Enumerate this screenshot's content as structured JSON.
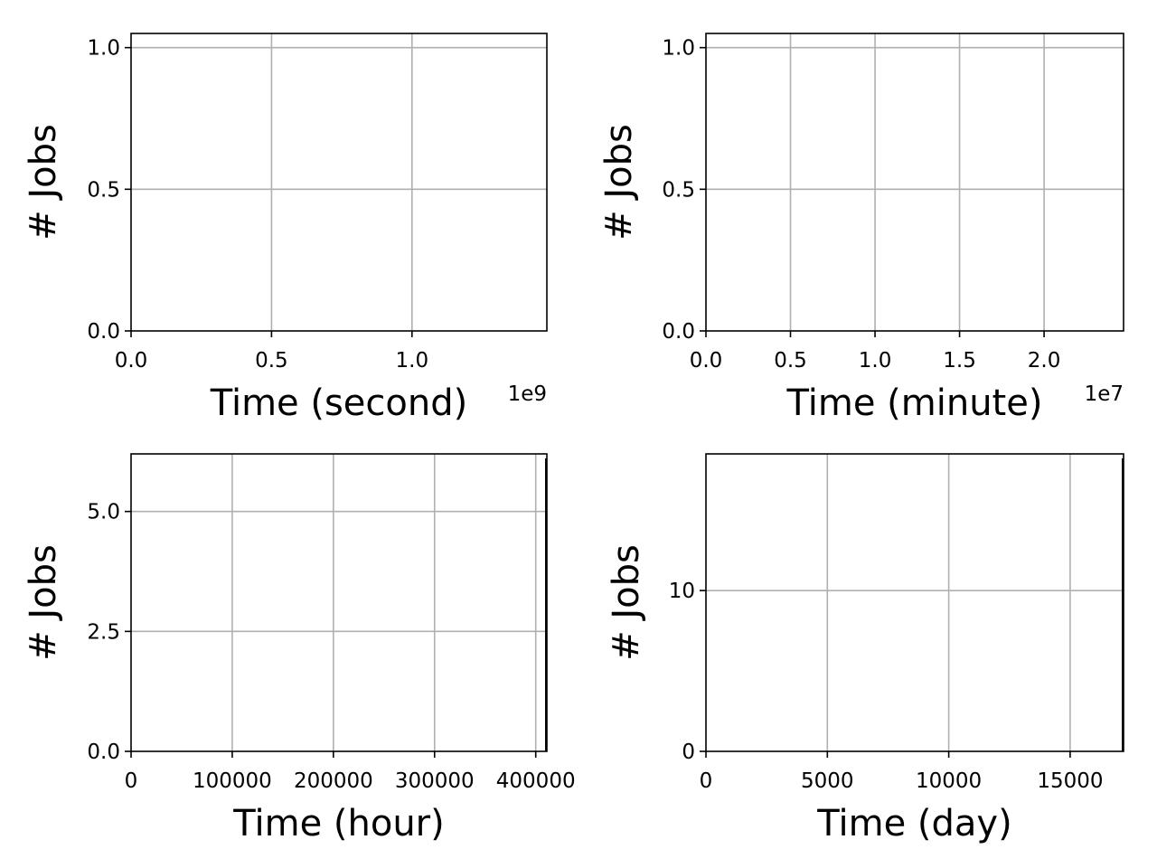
{
  "chart_data": [
    {
      "type": "bar",
      "title": "",
      "xlabel": "Time (second)",
      "ylabel": "# Jobs",
      "x_offset_text": "1e9",
      "xlim": [
        0,
        1.48
      ],
      "ylim": [
        0,
        1.05
      ],
      "x_ticks": [
        0,
        0.5,
        1.0
      ],
      "x_tick_labels": [
        "0.0",
        "0.5",
        "1.0"
      ],
      "y_ticks": [
        0,
        0.5,
        1.0
      ],
      "y_tick_labels": [
        "0.0",
        "0.5",
        "1.0"
      ],
      "grid": true,
      "series": [],
      "right_edge_bar": false
    },
    {
      "type": "bar",
      "title": "",
      "xlabel": "Time (minute)",
      "ylabel": "# Jobs",
      "x_offset_text": "1e7",
      "xlim": [
        0,
        2.47
      ],
      "ylim": [
        0,
        1.05
      ],
      "x_ticks": [
        0,
        0.5,
        1.0,
        1.5,
        2.0
      ],
      "x_tick_labels": [
        "0.0",
        "0.5",
        "1.0",
        "1.5",
        "2.0"
      ],
      "y_ticks": [
        0,
        0.5,
        1.0
      ],
      "y_tick_labels": [
        "0.0",
        "0.5",
        "1.0"
      ],
      "grid": true,
      "series": [],
      "right_edge_bar": false
    },
    {
      "type": "bar",
      "title": "",
      "xlabel": "Time (hour)",
      "ylabel": "# Jobs",
      "x_offset_text": "",
      "xlim": [
        0,
        411000
      ],
      "ylim": [
        0,
        6.2
      ],
      "x_ticks": [
        0,
        100000,
        200000,
        300000,
        400000
      ],
      "x_tick_labels": [
        "0",
        "100000",
        "200000",
        "300000",
        "400000"
      ],
      "y_ticks": [
        0,
        2.5,
        5.0
      ],
      "y_tick_labels": [
        "0.0",
        "2.5",
        "5.0"
      ],
      "grid": true,
      "series": [],
      "right_edge_bar": true
    },
    {
      "type": "bar",
      "title": "",
      "xlabel": "Time (day)",
      "ylabel": "# Jobs",
      "x_offset_text": "",
      "xlim": [
        0,
        17200
      ],
      "ylim": [
        0,
        18.5
      ],
      "x_ticks": [
        0,
        5000,
        10000,
        15000
      ],
      "x_tick_labels": [
        "0",
        "5000",
        "10000",
        "15000"
      ],
      "y_ticks": [
        0,
        10
      ],
      "y_tick_labels": [
        "0",
        "10"
      ],
      "grid": true,
      "series": [],
      "right_edge_bar": true
    }
  ]
}
